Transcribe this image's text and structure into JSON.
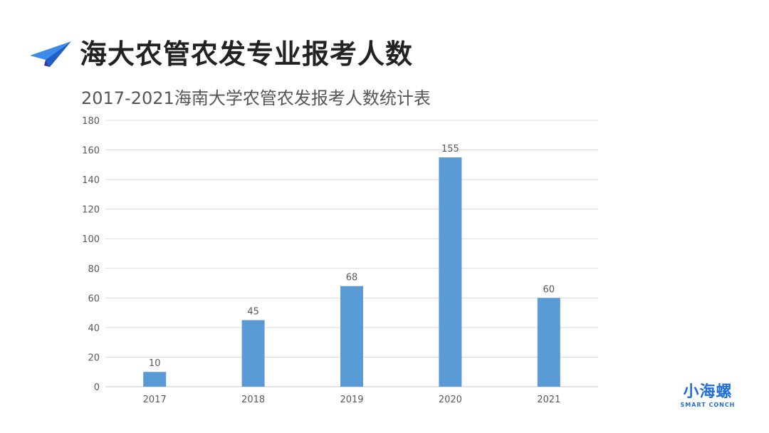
{
  "slide": {
    "title": "海大农管农发专业报考人数",
    "subtitle": "2017-2021海南大学农管农发报考人数统计表",
    "icon": "paper-plane-icon",
    "logo": {
      "main": "小海螺",
      "sub": "SMART CONCH",
      "color": "#1e6fd9"
    }
  },
  "chart_data": {
    "type": "bar",
    "title": "2017-2021海南大学农管农发报考人数统计表",
    "categories": [
      "2017",
      "2018",
      "2019",
      "2020",
      "2021"
    ],
    "values": [
      10,
      45,
      68,
      155,
      60
    ],
    "data_labels": [
      "10",
      "45",
      "68",
      "155",
      "60"
    ],
    "xlabel": "",
    "ylabel": "",
    "ylim": [
      0,
      180
    ],
    "yticks": [
      0,
      20,
      40,
      60,
      80,
      100,
      120,
      140,
      160,
      180
    ],
    "grid": true,
    "legend": null,
    "bar_color": "#5b9bd5"
  }
}
